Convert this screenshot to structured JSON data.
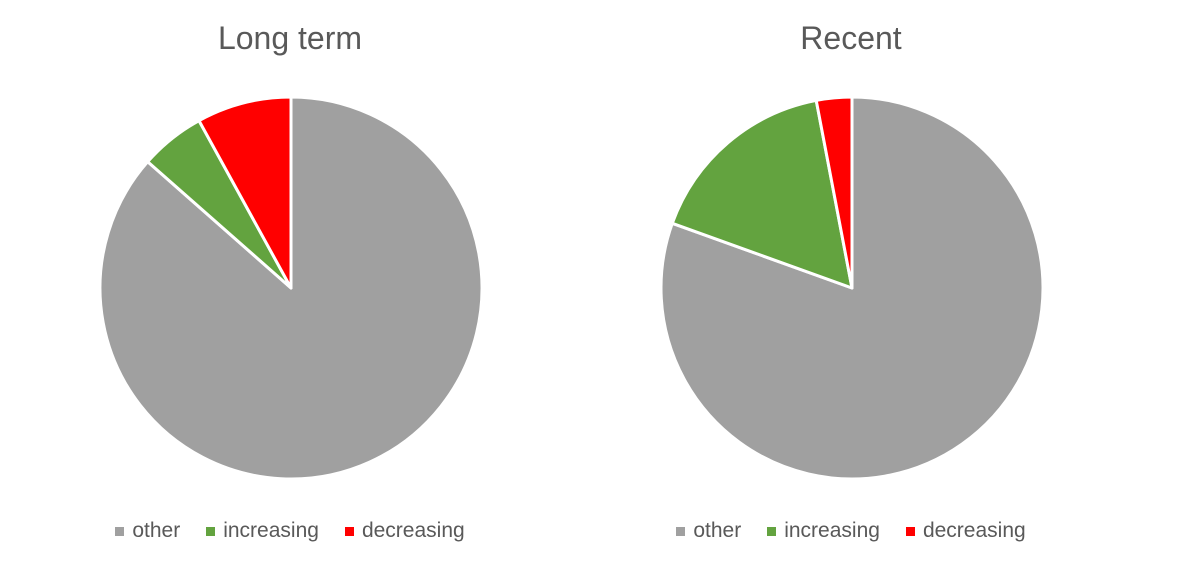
{
  "chart_data": [
    {
      "type": "pie",
      "title": "Long term",
      "slices": [
        {
          "label": "other",
          "value": 0.865,
          "color": "#a0a0a0"
        },
        {
          "label": "increasing",
          "value": 0.055,
          "color": "#63a33f"
        },
        {
          "label": "decreasing",
          "value": 0.08,
          "color": "#ff0000"
        }
      ],
      "legend": "bottom"
    },
    {
      "type": "pie",
      "title": "Recent",
      "slices": [
        {
          "label": "other",
          "value": 0.805,
          "color": "#a0a0a0"
        },
        {
          "label": "increasing",
          "value": 0.165,
          "color": "#63a33f"
        },
        {
          "label": "decreasing",
          "value": 0.03,
          "color": "#ff0000"
        }
      ],
      "legend": "bottom"
    }
  ]
}
